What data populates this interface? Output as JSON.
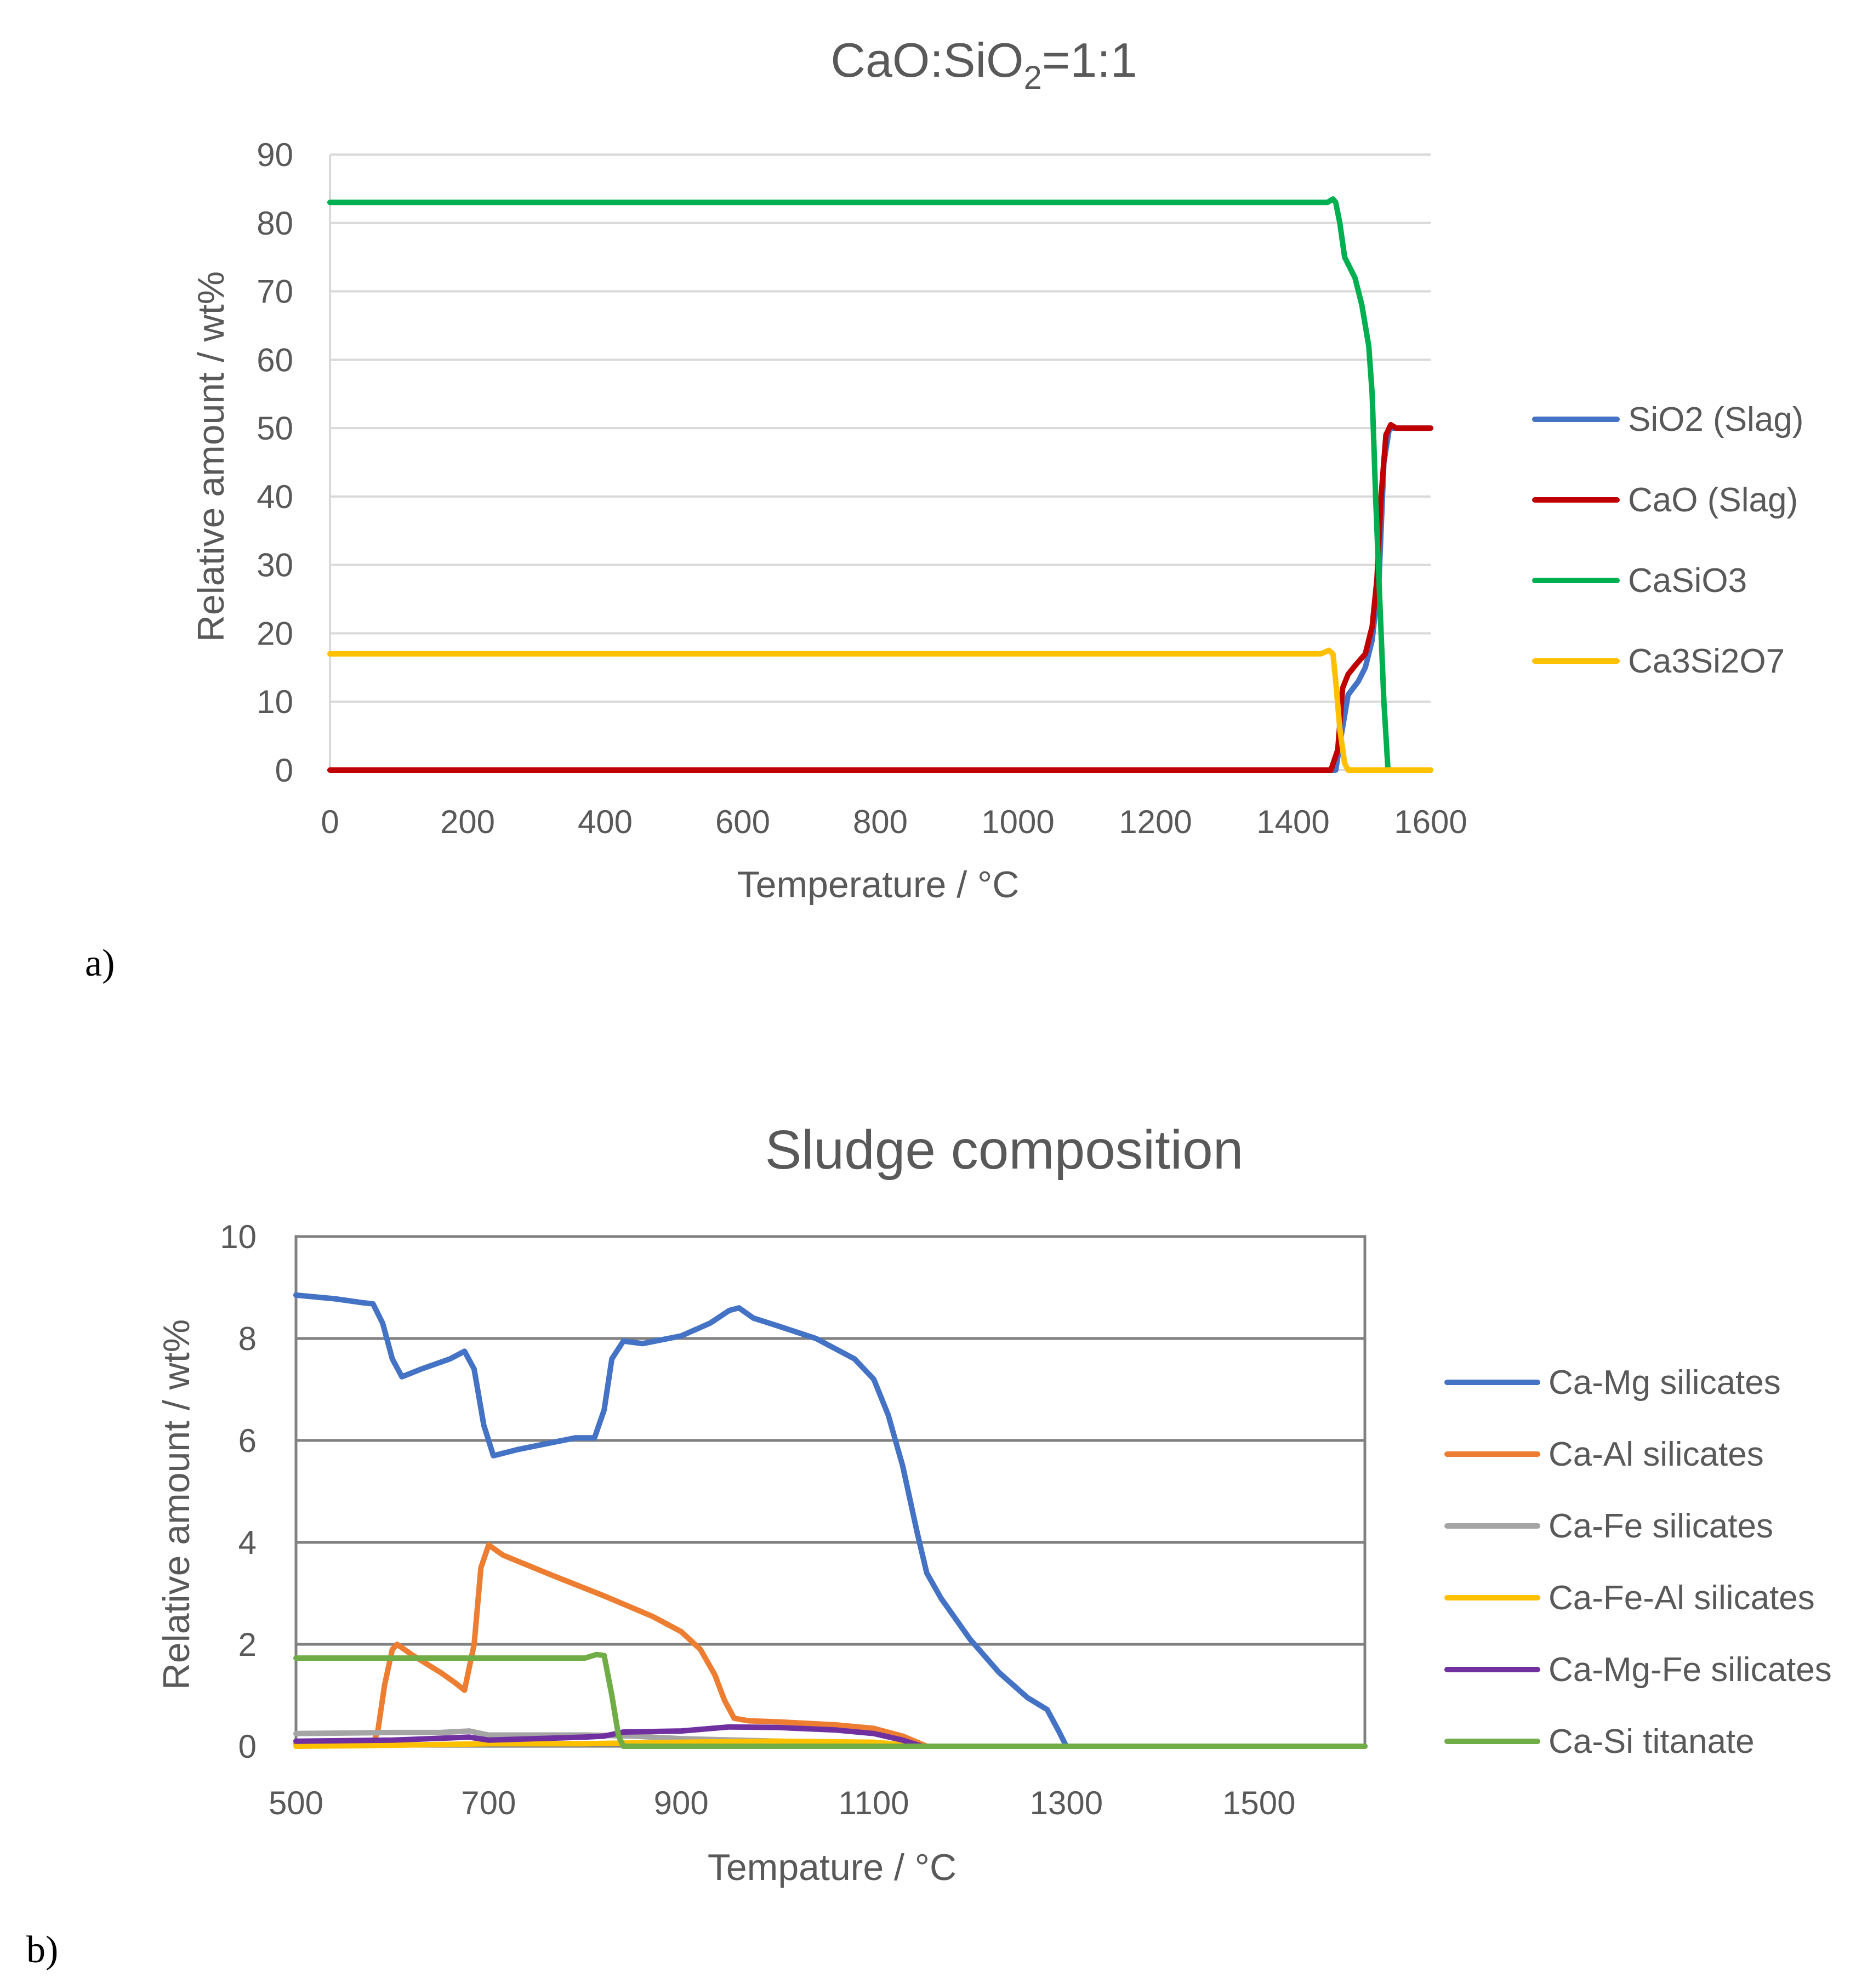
{
  "chart_data": [
    {
      "type": "line",
      "panel_label": "a)",
      "title_main": "CaO:SiO",
      "title_sub": "2",
      "title_tail": "=1:1",
      "xlabel": "Temperature / °C",
      "ylabel": "Relative amount / wt%",
      "xlim": [
        0,
        1600
      ],
      "ylim": [
        0,
        90
      ],
      "xticks": [
        "0",
        "200",
        "400",
        "600",
        "800",
        "1000",
        "1200",
        "1400",
        "1600"
      ],
      "yticks": [
        "0",
        "10",
        "20",
        "30",
        "40",
        "50",
        "60",
        "70",
        "80",
        "90"
      ],
      "grid": "horizontal",
      "legend_position": "right",
      "series": [
        {
          "name": "SiO2 (Slag)",
          "color": "#4472C4",
          "points": [
            [
              0,
              0
            ],
            [
              1450,
              0
            ],
            [
              1462,
              0
            ],
            [
              1470,
              5
            ],
            [
              1480,
              11
            ],
            [
              1495,
              13
            ],
            [
              1505,
              15
            ],
            [
              1515,
              19
            ],
            [
              1525,
              28
            ],
            [
              1532,
              45
            ],
            [
              1540,
              50
            ],
            [
              1550,
              50
            ],
            [
              1600,
              50
            ]
          ]
        },
        {
          "name": "CaO (Slag)",
          "color": "#C00000",
          "points": [
            [
              0,
              0
            ],
            [
              1440,
              0
            ],
            [
              1455,
              0
            ],
            [
              1465,
              3
            ],
            [
              1472,
              12
            ],
            [
              1480,
              14
            ],
            [
              1492,
              15.5
            ],
            [
              1505,
              17
            ],
            [
              1515,
              21
            ],
            [
              1522,
              28
            ],
            [
              1528,
              40
            ],
            [
              1535,
              49
            ],
            [
              1542,
              50.5
            ],
            [
              1550,
              50
            ],
            [
              1600,
              50
            ]
          ]
        },
        {
          "name": "CaSiO3",
          "color": "#00B050",
          "points": [
            [
              0,
              83
            ],
            [
              1450,
              83
            ],
            [
              1458,
              83.5
            ],
            [
              1462,
              83
            ],
            [
              1468,
              80
            ],
            [
              1475,
              75
            ],
            [
              1490,
              72
            ],
            [
              1500,
              68
            ],
            [
              1510,
              62
            ],
            [
              1515,
              55
            ],
            [
              1520,
              40
            ],
            [
              1526,
              25
            ],
            [
              1532,
              10
            ],
            [
              1538,
              0
            ],
            [
              1550,
              0
            ],
            [
              1600,
              0
            ]
          ]
        },
        {
          "name": "Ca3Si2O7",
          "color": "#FFC000",
          "points": [
            [
              0,
              17
            ],
            [
              1440,
              17
            ],
            [
              1452,
              17.5
            ],
            [
              1458,
              17
            ],
            [
              1462,
              13
            ],
            [
              1468,
              6
            ],
            [
              1475,
              1
            ],
            [
              1480,
              0
            ],
            [
              1600,
              0
            ]
          ]
        }
      ]
    },
    {
      "type": "line",
      "panel_label": "b)",
      "title": "Sludge composition",
      "xlabel": "Tempature / °C",
      "ylabel": "Relative amount / wt%",
      "xlim": [
        500,
        1610
      ],
      "ylim": [
        0,
        10
      ],
      "xticks": [
        "500",
        "700",
        "900",
        "1100",
        "1300",
        "1500"
      ],
      "yticks": [
        "0",
        "2",
        "4",
        "6",
        "8",
        "10"
      ],
      "grid": "horizontal",
      "legend_position": "right",
      "series": [
        {
          "name": "Ca-Mg silicates",
          "color": "#4472C4",
          "points": [
            [
              500,
              8.85
            ],
            [
              540,
              8.78
            ],
            [
              570,
              8.7
            ],
            [
              580,
              8.68
            ],
            [
              590,
              8.3
            ],
            [
              600,
              7.6
            ],
            [
              610,
              7.25
            ],
            [
              630,
              7.4
            ],
            [
              660,
              7.6
            ],
            [
              675,
              7.75
            ],
            [
              685,
              7.4
            ],
            [
              695,
              6.3
            ],
            [
              705,
              5.7
            ],
            [
              730,
              5.82
            ],
            [
              790,
              6.05
            ],
            [
              810,
              6.05
            ],
            [
              820,
              6.6
            ],
            [
              828,
              7.6
            ],
            [
              840,
              7.95
            ],
            [
              860,
              7.9
            ],
            [
              900,
              8.05
            ],
            [
              930,
              8.3
            ],
            [
              950,
              8.55
            ],
            [
              960,
              8.6
            ],
            [
              975,
              8.4
            ],
            [
              1000,
              8.25
            ],
            [
              1040,
              8.0
            ],
            [
              1080,
              7.6
            ],
            [
              1100,
              7.2
            ],
            [
              1115,
              6.5
            ],
            [
              1130,
              5.5
            ],
            [
              1145,
              4.2
            ],
            [
              1155,
              3.4
            ],
            [
              1170,
              2.9
            ],
            [
              1200,
              2.1
            ],
            [
              1230,
              1.45
            ],
            [
              1260,
              0.95
            ],
            [
              1280,
              0.72
            ],
            [
              1292,
              0.3
            ],
            [
              1300,
              0
            ],
            [
              1610,
              0
            ]
          ]
        },
        {
          "name": "Ca-Al silicates",
          "color": "#ED7D31",
          "points": [
            [
              500,
              0.05
            ],
            [
              580,
              0.05
            ],
            [
              585,
              0.3
            ],
            [
              592,
              1.2
            ],
            [
              600,
              1.9
            ],
            [
              605,
              2.0
            ],
            [
              620,
              1.8
            ],
            [
              650,
              1.45
            ],
            [
              665,
              1.25
            ],
            [
              675,
              1.1
            ],
            [
              685,
              2.0
            ],
            [
              692,
              3.5
            ],
            [
              700,
              3.95
            ],
            [
              715,
              3.75
            ],
            [
              760,
              3.4
            ],
            [
              820,
              2.95
            ],
            [
              870,
              2.55
            ],
            [
              900,
              2.25
            ],
            [
              920,
              1.9
            ],
            [
              935,
              1.4
            ],
            [
              945,
              0.9
            ],
            [
              955,
              0.55
            ],
            [
              970,
              0.5
            ],
            [
              1000,
              0.48
            ],
            [
              1060,
              0.42
            ],
            [
              1100,
              0.35
            ],
            [
              1130,
              0.2
            ],
            [
              1155,
              0
            ],
            [
              1610,
              0
            ]
          ]
        },
        {
          "name": "Ca-Fe silicates",
          "color": "#A5A5A5",
          "points": [
            [
              500,
              0.25
            ],
            [
              600,
              0.27
            ],
            [
              650,
              0.27
            ],
            [
              680,
              0.3
            ],
            [
              700,
              0.22
            ],
            [
              800,
              0.22
            ],
            [
              850,
              0.2
            ],
            [
              900,
              0.15
            ],
            [
              1000,
              0.1
            ],
            [
              1100,
              0.05
            ],
            [
              1150,
              0
            ],
            [
              1610,
              0
            ]
          ]
        },
        {
          "name": "Ca-Fe-Al silicates",
          "color": "#FFC000",
          "points": [
            [
              500,
              0.0
            ],
            [
              600,
              0.02
            ],
            [
              700,
              0.05
            ],
            [
              800,
              0.05
            ],
            [
              900,
              0.08
            ],
            [
              1000,
              0.1
            ],
            [
              1100,
              0.08
            ],
            [
              1150,
              0
            ],
            [
              1610,
              0
            ]
          ]
        },
        {
          "name": "Ca-Mg-Fe silicates",
          "color": "#7030A0",
          "points": [
            [
              500,
              0.1
            ],
            [
              600,
              0.12
            ],
            [
              680,
              0.18
            ],
            [
              700,
              0.12
            ],
            [
              800,
              0.18
            ],
            [
              820,
              0.2
            ],
            [
              840,
              0.28
            ],
            [
              900,
              0.3
            ],
            [
              950,
              0.38
            ],
            [
              1000,
              0.37
            ],
            [
              1060,
              0.32
            ],
            [
              1100,
              0.25
            ],
            [
              1130,
              0.12
            ],
            [
              1150,
              0
            ],
            [
              1610,
              0
            ]
          ]
        },
        {
          "name": "Ca-Si titanate",
          "color": "#70AD47",
          "points": [
            [
              500,
              1.73
            ],
            [
              800,
              1.73
            ],
            [
              812,
              1.8
            ],
            [
              820,
              1.78
            ],
            [
              828,
              1.0
            ],
            [
              835,
              0.2
            ],
            [
              840,
              0
            ],
            [
              1610,
              0
            ]
          ]
        }
      ]
    }
  ]
}
